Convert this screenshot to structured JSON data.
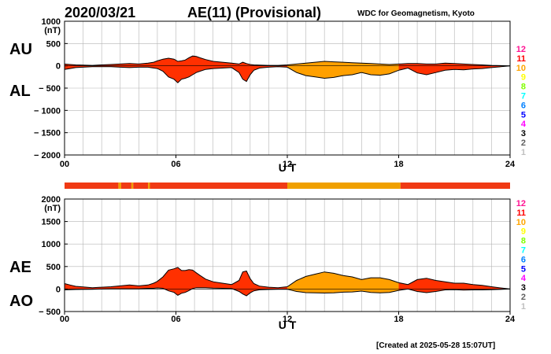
{
  "header": {
    "date": "2020/03/21",
    "title": "AE(11) (Provisional)",
    "source": "WDC for Geomagnetism, Kyoto"
  },
  "footer": {
    "created": "[Created at 2025-05-28 15:07UT]"
  },
  "colors": {
    "fill_red": "#ff3000",
    "fill_orange": "#ffa000",
    "strip_red": "#f03a14",
    "strip_orange": "#f0a000",
    "grid": "#b4b4b4"
  },
  "station_scale": {
    "labels": [
      "12",
      "11",
      "10",
      "9",
      "8",
      "7",
      "6",
      "5",
      "4",
      "3",
      "2",
      "1"
    ],
    "colors": [
      "#ff1493",
      "#ff0000",
      "#ffa500",
      "#ffff00",
      "#80ff00",
      "#00ffff",
      "#0080ff",
      "#0000ff",
      "#ff00ff",
      "#000000",
      "#606060",
      "#c0c0c0"
    ]
  },
  "chart_data": [
    {
      "type": "area",
      "name": "top-panel",
      "series_labels": [
        "AU",
        "AL"
      ],
      "ylabel": "(nT)",
      "xlabel": "U T",
      "ylim": [
        -2000,
        1000
      ],
      "yticks": [
        1000,
        500,
        0,
        -500,
        -1000,
        -1500,
        -2000
      ],
      "ytick_labels": [
        "1000",
        "500",
        "0",
        "− 500",
        "− 1000",
        "− 1500",
        "− 2000"
      ],
      "xlim": [
        0,
        24
      ],
      "xticks": [
        0,
        6,
        12,
        18,
        24
      ],
      "xtick_labels": [
        "00",
        "06",
        "12",
        "18",
        "24"
      ],
      "grid": true,
      "x": [
        0,
        0.3,
        0.6,
        1.0,
        1.5,
        2.0,
        2.5,
        3.0,
        3.5,
        4.0,
        4.5,
        4.8,
        5.0,
        5.3,
        5.6,
        5.9,
        6.1,
        6.3,
        6.5,
        6.7,
        6.9,
        7.1,
        7.3,
        7.6,
        8.0,
        8.5,
        9.0,
        9.4,
        9.6,
        9.8,
        10.0,
        10.2,
        10.5,
        11.0,
        11.5,
        12.0,
        12.5,
        13.0,
        13.5,
        14.0,
        14.5,
        15.0,
        15.5,
        16.0,
        16.5,
        17.0,
        17.5,
        18.0,
        18.5,
        19.0,
        19.5,
        20.0,
        20.5,
        21.0,
        21.5,
        22.0,
        22.5,
        23.0,
        23.5,
        24.0
      ],
      "upper_values": [
        40,
        30,
        20,
        15,
        10,
        20,
        30,
        40,
        50,
        40,
        60,
        80,
        110,
        150,
        170,
        150,
        100,
        110,
        130,
        180,
        220,
        210,
        180,
        140,
        100,
        80,
        60,
        40,
        80,
        50,
        30,
        20,
        15,
        10,
        10,
        20,
        40,
        60,
        80,
        100,
        90,
        80,
        70,
        60,
        50,
        40,
        30,
        40,
        50,
        50,
        40,
        40,
        60,
        50,
        40,
        30,
        20,
        10,
        5,
        0
      ],
      "lower_values": [
        -80,
        -60,
        -40,
        -30,
        -20,
        -20,
        -20,
        -30,
        -40,
        -30,
        -30,
        -50,
        -60,
        -120,
        -250,
        -300,
        -380,
        -300,
        -280,
        -250,
        -200,
        -150,
        -120,
        -80,
        -60,
        -50,
        -40,
        -150,
        -300,
        -350,
        -200,
        -100,
        -50,
        -30,
        -20,
        -30,
        -150,
        -220,
        -250,
        -280,
        -260,
        -220,
        -200,
        -150,
        -200,
        -210,
        -180,
        -100,
        -50,
        -160,
        -200,
        -150,
        -100,
        -80,
        -90,
        -70,
        -60,
        -40,
        -20,
        0
      ],
      "fill_segments": [
        {
          "from": 0,
          "to": 12,
          "color": "red"
        },
        {
          "from": 12,
          "to": 18,
          "color": "orange"
        },
        {
          "from": 18,
          "to": 24,
          "color": "red"
        }
      ]
    },
    {
      "type": "area",
      "name": "bottom-panel",
      "series_labels": [
        "AE",
        "AO"
      ],
      "ylabel": "(nT)",
      "xlabel": "U T",
      "ylim": [
        -500,
        2000
      ],
      "yticks": [
        2000,
        1500,
        1000,
        500,
        0,
        -500
      ],
      "ytick_labels": [
        "2000",
        "1500",
        "1000",
        "500",
        "0",
        "− 500"
      ],
      "xlim": [
        0,
        24
      ],
      "xticks": [
        0,
        6,
        12,
        18,
        24
      ],
      "xtick_labels": [
        "00",
        "06",
        "12",
        "18",
        "24"
      ],
      "grid": true,
      "x": [
        0,
        0.3,
        0.6,
        1.0,
        1.5,
        2.0,
        2.5,
        3.0,
        3.5,
        4.0,
        4.5,
        4.8,
        5.0,
        5.3,
        5.6,
        5.9,
        6.1,
        6.3,
        6.5,
        6.7,
        6.9,
        7.1,
        7.3,
        7.6,
        8.0,
        8.5,
        9.0,
        9.4,
        9.6,
        9.8,
        10.0,
        10.2,
        10.5,
        11.0,
        11.5,
        12.0,
        12.5,
        13.0,
        13.5,
        14.0,
        14.5,
        15.0,
        15.5,
        16.0,
        16.5,
        17.0,
        17.5,
        18.0,
        18.5,
        19.0,
        19.5,
        20.0,
        20.5,
        21.0,
        21.5,
        22.0,
        22.5,
        23.0,
        23.5,
        24.0
      ],
      "upper_values": [
        120,
        90,
        60,
        45,
        30,
        40,
        50,
        70,
        90,
        70,
        90,
        130,
        170,
        270,
        420,
        450,
        480,
        410,
        410,
        430,
        420,
        360,
        300,
        220,
        160,
        130,
        100,
        190,
        380,
        400,
        230,
        120,
        65,
        40,
        30,
        50,
        190,
        280,
        330,
        380,
        350,
        300,
        270,
        210,
        250,
        250,
        210,
        140,
        100,
        210,
        240,
        190,
        160,
        130,
        130,
        100,
        80,
        50,
        25,
        0
      ],
      "lower_values": [
        -20,
        -15,
        -10,
        -8,
        -5,
        0,
        5,
        5,
        5,
        5,
        15,
        15,
        25,
        15,
        -40,
        -75,
        -140,
        -95,
        -75,
        -35,
        10,
        30,
        30,
        30,
        20,
        15,
        10,
        -55,
        -110,
        -150,
        -85,
        -40,
        -18,
        -10,
        -5,
        -5,
        -55,
        -80,
        -85,
        -90,
        -85,
        -70,
        -65,
        -45,
        -75,
        -85,
        -75,
        -30,
        0,
        -55,
        -80,
        -55,
        -20,
        -15,
        -25,
        -20,
        -20,
        -15,
        -8,
        0
      ],
      "fill_segments": [
        {
          "from": 0,
          "to": 12,
          "color": "red"
        },
        {
          "from": 12,
          "to": 18,
          "color": "orange"
        },
        {
          "from": 18,
          "to": 24,
          "color": "red"
        }
      ]
    }
  ],
  "station_strip": [
    {
      "from": 0,
      "to": 2.9,
      "color": "red"
    },
    {
      "from": 2.9,
      "to": 3.05,
      "color": "orange"
    },
    {
      "from": 3.05,
      "to": 3.6,
      "color": "red"
    },
    {
      "from": 3.6,
      "to": 3.7,
      "color": "orange"
    },
    {
      "from": 3.7,
      "to": 4.5,
      "color": "red"
    },
    {
      "from": 4.5,
      "to": 4.6,
      "color": "orange"
    },
    {
      "from": 4.6,
      "to": 12,
      "color": "red"
    },
    {
      "from": 12,
      "to": 18.1,
      "color": "orange"
    },
    {
      "from": 18.1,
      "to": 24,
      "color": "red"
    }
  ]
}
